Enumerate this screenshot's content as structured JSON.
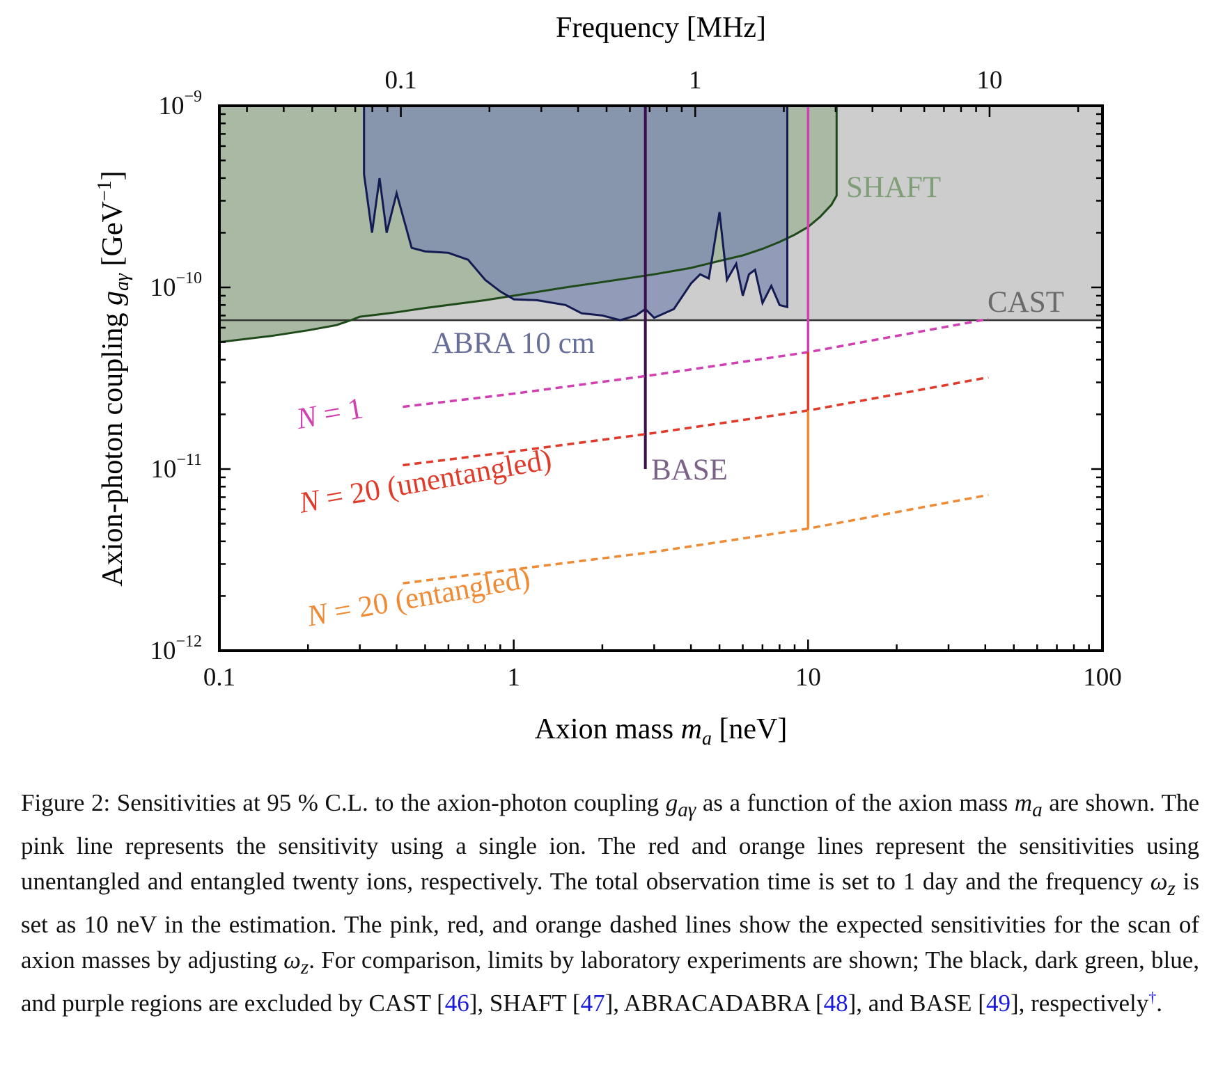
{
  "chart_data": {
    "type": "line",
    "title": "",
    "xlabel": "Axion mass m_a [neV]",
    "xlabel_parts": {
      "pre": "Axion mass ",
      "sym": "m",
      "sub": "a",
      "post": " [neV]"
    },
    "x2label": "Frequency [MHz]",
    "ylabel": "Axion-photon coupling g_aγ [GeV⁻¹]",
    "ylabel_parts": {
      "pre": "Axion-photon coupling ",
      "sym": "g",
      "sub": "aγ",
      "post": " [GeV",
      "exp": "−1",
      "close": "]"
    },
    "x_scale": "log",
    "y_scale": "log",
    "xlim": [
      0.1,
      100
    ],
    "ylim": [
      1e-12,
      1e-09
    ],
    "x_ticks": [
      {
        "v": 0.1,
        "label": "0.1"
      },
      {
        "v": 1,
        "label": "1"
      },
      {
        "v": 10,
        "label": "10"
      },
      {
        "v": 100,
        "label": "100"
      }
    ],
    "x2_ticks": [
      {
        "v": 0.1,
        "label": "0.1"
      },
      {
        "v": 1,
        "label": "1"
      },
      {
        "v": 10,
        "label": "10"
      }
    ],
    "x2_conversion_mhz_per_nev": 0.2418,
    "y_ticks": [
      {
        "v": 1e-09,
        "base": "10",
        "exp": "−9"
      },
      {
        "v": 1e-10,
        "base": "10",
        "exp": "−10"
      },
      {
        "v": 1e-11,
        "base": "10",
        "exp": "−11"
      },
      {
        "v": 1e-12,
        "base": "10",
        "exp": "−12"
      }
    ],
    "regions": [
      {
        "name": "CAST",
        "color": "#cdcdcd",
        "line_color": "#333333",
        "limit": 6.6e-11
      },
      {
        "name": "SHAFT",
        "color": "#a9b9a3",
        "line_color": "#1e4a1a",
        "x": [
          0.1,
          0.15,
          0.2,
          0.25,
          0.28,
          0.3,
          0.35,
          0.4,
          0.5,
          0.6,
          0.8,
          1.0,
          1.5,
          2.0,
          3.0,
          4.0,
          5.0,
          6.0,
          7.0,
          8.0,
          9.0,
          10.0,
          11.0,
          12.0,
          12.5
        ],
        "y": [
          5e-11,
          5.4e-11,
          5.8e-11,
          6.2e-11,
          6.6e-11,
          6.9e-11,
          7.1e-11,
          7.3e-11,
          7.7e-11,
          8e-11,
          8.5e-11,
          9e-11,
          1e-10,
          1.07e-10,
          1.18e-10,
          1.28e-10,
          1.4e-10,
          1.5e-10,
          1.63e-10,
          1.78e-10,
          1.95e-10,
          2.15e-10,
          2.45e-10,
          2.85e-10,
          3.2e-10
        ],
        "x_max": 12.5
      },
      {
        "name": "ABRA 10 cm",
        "color": "#8990b0",
        "line_color": "#141a52",
        "x": [
          0.31,
          0.33,
          0.35,
          0.37,
          0.4,
          0.45,
          0.5,
          0.6,
          0.7,
          0.8,
          0.9,
          1.0,
          1.2,
          1.5,
          1.7,
          2.0,
          2.3,
          2.6,
          2.8,
          3.0,
          3.5,
          4.0,
          4.3,
          4.6,
          5.0,
          5.3,
          5.7,
          6.0,
          6.3,
          6.6,
          7.0,
          7.5,
          8.0,
          8.5
        ],
        "y": [
          4.2e-10,
          2e-10,
          4e-10,
          2e-10,
          3.3e-10,
          1.65e-10,
          1.58e-10,
          1.55e-10,
          1.42e-10,
          1.1e-10,
          9.5e-11,
          8.6e-11,
          8.5e-11,
          8e-11,
          7.2e-11,
          7e-11,
          6.6e-11,
          7e-11,
          7.6e-11,
          6.8e-11,
          7.6e-11,
          1.05e-10,
          1.18e-10,
          1.12e-10,
          2.6e-10,
          1.1e-10,
          1.35e-10,
          9e-11,
          1.18e-10,
          1.25e-10,
          8.2e-11,
          1.02e-10,
          8e-11,
          7.8e-11
        ],
        "x_min": 0.31,
        "x_max": 8.5
      },
      {
        "name": "BASE",
        "color": "#3b0d4f",
        "line_color": "#3b0d4f",
        "x": 2.8,
        "y_min": 1e-11
      }
    ],
    "ion_point": {
      "x": 10,
      "y_values": [
        4.4e-11,
        2.1e-11,
        4.7e-12
      ],
      "colors": [
        "#d040b0",
        "#e03a2b",
        "#ef8a35"
      ]
    },
    "series": [
      {
        "name": "N = 1",
        "color": "#d040b0",
        "x": [
          0.42,
          1,
          3,
          10,
          41
        ],
        "y": [
          2.2e-11,
          2.6e-11,
          3.3e-11,
          4.4e-11,
          6.7e-11
        ]
      },
      {
        "name": "N = 20 (unentangled)",
        "color": "#e03a2b",
        "x": [
          0.42,
          1,
          3,
          10,
          41
        ],
        "y": [
          1.05e-11,
          1.25e-11,
          1.58e-11,
          2.1e-11,
          3.2e-11
        ]
      },
      {
        "name": "N = 20 (entangled)",
        "color": "#ef8a35",
        "x": [
          0.42,
          1,
          3,
          10,
          41
        ],
        "y": [
          2.35e-12,
          2.8e-12,
          3.5e-12,
          4.7e-12,
          7.2e-12
        ]
      }
    ],
    "labels": [
      {
        "name": "label-shaft",
        "text": "SHAFT",
        "color": "#7f9e76"
      },
      {
        "name": "label-cast",
        "text": "CAST",
        "color": "#6a6a6a"
      },
      {
        "name": "label-abra",
        "text": "ABRA 10 cm",
        "color": "#676e98"
      },
      {
        "name": "label-base",
        "text": "BASE",
        "color": "#7a6287"
      },
      {
        "name": "label-n1",
        "text": "N = 1",
        "sym": "N",
        "rest": " = 1",
        "color": "#d040b0"
      },
      {
        "name": "label-n20-unent",
        "text": "N = 20 (unentangled)",
        "sym": "N",
        "rest": " = 20 (unentangled)",
        "color": "#e03a2b"
      },
      {
        "name": "label-n20-ent",
        "text": "N = 20 (entangled)",
        "sym": "N",
        "rest": " = 20 (entangled)",
        "color": "#ef8a35"
      }
    ]
  },
  "caption": {
    "lead": "Figure 2: Sensitivities at 95 % C.L. to the axion-photon coupling ",
    "g_sym": "g",
    "g_sub": "aγ",
    "part1": " as a function of the axion mass ",
    "m_sym": "m",
    "m_sub": "a",
    "part2": " are shown. The pink line represents the sensitivity using a single ion. The red and orange lines represent the sensitivities using unentangled and entangled twenty ions, respectively. The total observation time is set to 1 day and the frequency ",
    "w_sym": "ω",
    "w_sub": "z",
    "part3": " is set as 10 neV in the estimation. The pink, red, and orange dashed lines show the expected sensitivities for the scan of axion masses by adjusting ",
    "part4": ". For comparison, limits by laboratory experiments are shown; The black, dark green, blue, and purple regions are excluded by CAST [",
    "ref46": "46",
    "part5": "], SHAFT [",
    "ref47": "47",
    "part6": "], ABRACADABRA [",
    "ref48": "48",
    "part7": "], and BASE [",
    "ref49": "49",
    "part8": "], respectively",
    "dagger": "†",
    "end": "."
  }
}
